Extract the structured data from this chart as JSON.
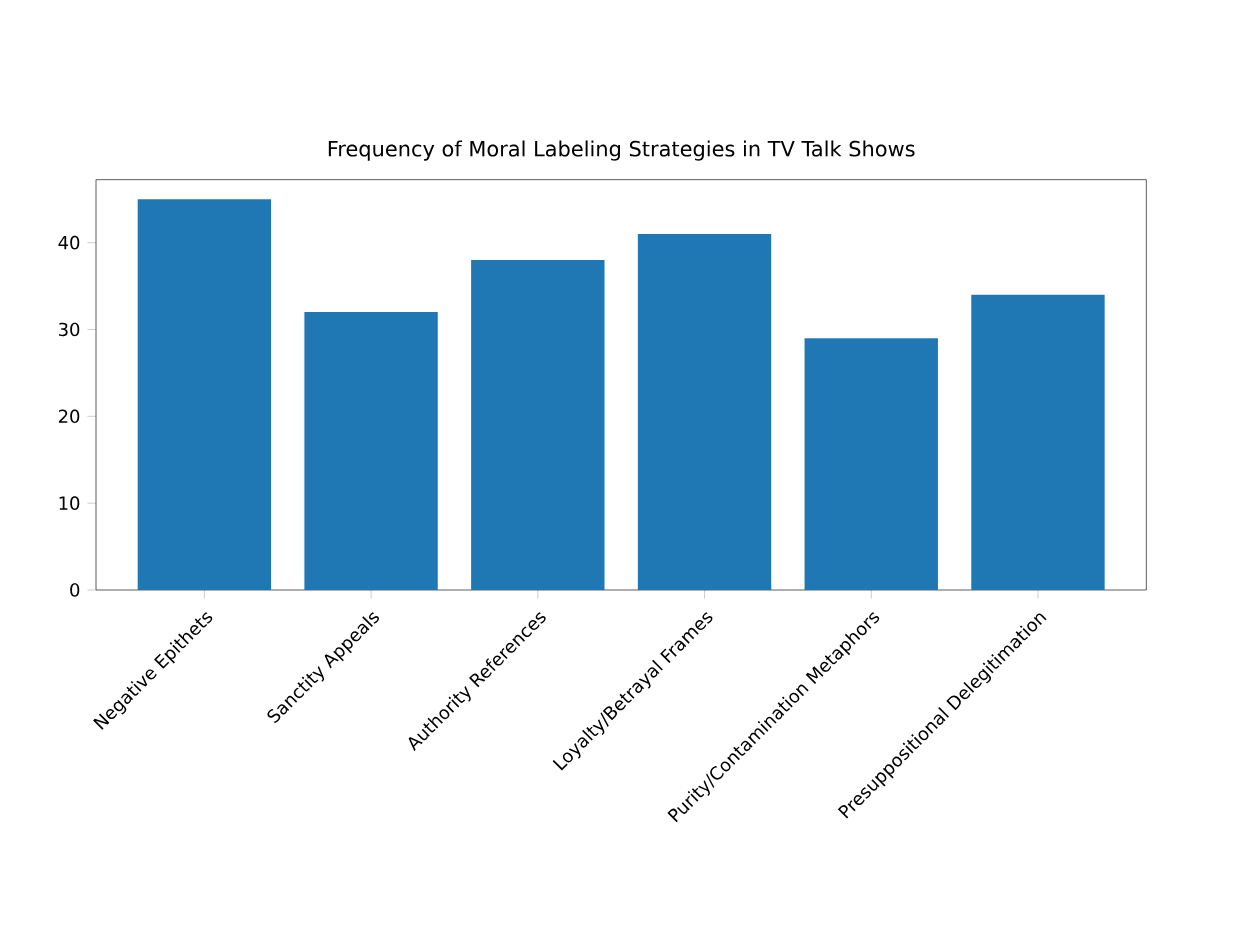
{
  "chart_data": {
    "type": "bar",
    "title": "Frequency of Moral Labeling Strategies in TV Talk Shows",
    "categories": [
      "Negative Epithets",
      "Sanctity Appeals",
      "Authority References",
      "Loyalty/Betrayal Frames",
      "Purity/Contamination Metaphors",
      "Presuppositional Delegitimation"
    ],
    "values": [
      45,
      32,
      38,
      41,
      29,
      34
    ],
    "color": "#1f77b4",
    "ylim": [
      0,
      47.25
    ],
    "yticks": [
      0,
      10,
      20,
      30,
      40
    ]
  }
}
